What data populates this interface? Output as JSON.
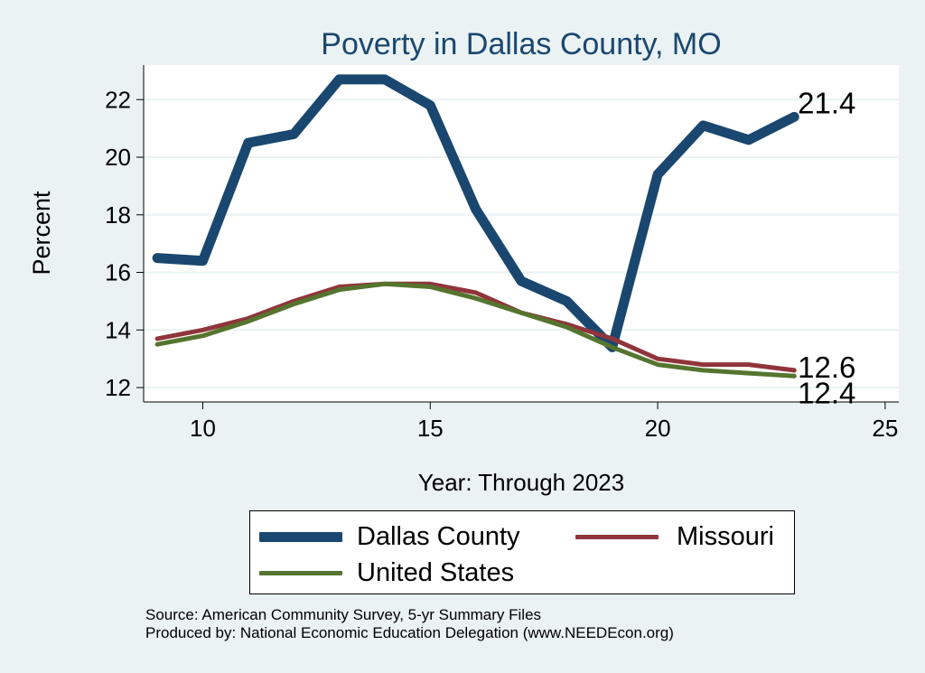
{
  "chart_data": {
    "type": "line",
    "title": "Poverty in Dallas County, MO",
    "xlabel": "Year: Through 2023",
    "ylabel": "Percent",
    "xlim": [
      8.7,
      25.3
    ],
    "ylim": [
      11.5,
      23.2
    ],
    "xticks": [
      10,
      15,
      20,
      25
    ],
    "yticks": [
      12,
      14,
      16,
      18,
      20,
      22
    ],
    "grid": true,
    "legend_position": "bottom",
    "series": [
      {
        "name": "Dallas County",
        "color": "#1a476f",
        "x": [
          9,
          10,
          11,
          12,
          13,
          14,
          15,
          16,
          17,
          18,
          19,
          20,
          21,
          22,
          23
        ],
        "values": [
          16.5,
          16.4,
          20.5,
          20.8,
          22.7,
          22.7,
          21.8,
          18.2,
          15.7,
          15.0,
          13.4,
          19.4,
          21.1,
          20.6,
          21.4
        ],
        "end_label": "21.4"
      },
      {
        "name": "Missouri",
        "color": "#90353b",
        "x": [
          9,
          10,
          11,
          12,
          13,
          14,
          15,
          16,
          17,
          18,
          19,
          20,
          21,
          22,
          23
        ],
        "values": [
          13.7,
          14.0,
          14.4,
          15.0,
          15.5,
          15.6,
          15.6,
          15.3,
          14.6,
          14.2,
          13.7,
          13.0,
          12.8,
          12.8,
          12.6
        ],
        "end_label": "12.6"
      },
      {
        "name": "United States",
        "color": "#55752f",
        "x": [
          9,
          10,
          11,
          12,
          13,
          14,
          15,
          16,
          17,
          18,
          19,
          20,
          21,
          22,
          23
        ],
        "values": [
          13.5,
          13.8,
          14.3,
          14.9,
          15.4,
          15.6,
          15.5,
          15.1,
          14.6,
          14.1,
          13.4,
          12.8,
          12.6,
          12.5,
          12.4
        ],
        "end_label": "12.4"
      }
    ]
  },
  "legend": {
    "items": [
      {
        "label": "Dallas County",
        "color": "#1a476f"
      },
      {
        "label": "Missouri",
        "color": "#90353b"
      },
      {
        "label": "United States",
        "color": "#55752f"
      }
    ]
  },
  "notes": {
    "source": "Source: American Community Survey, 5-yr Summary Files",
    "produced_by": "Produced by: National Economic Education Delegation (www.NEEDEcon.org)"
  }
}
